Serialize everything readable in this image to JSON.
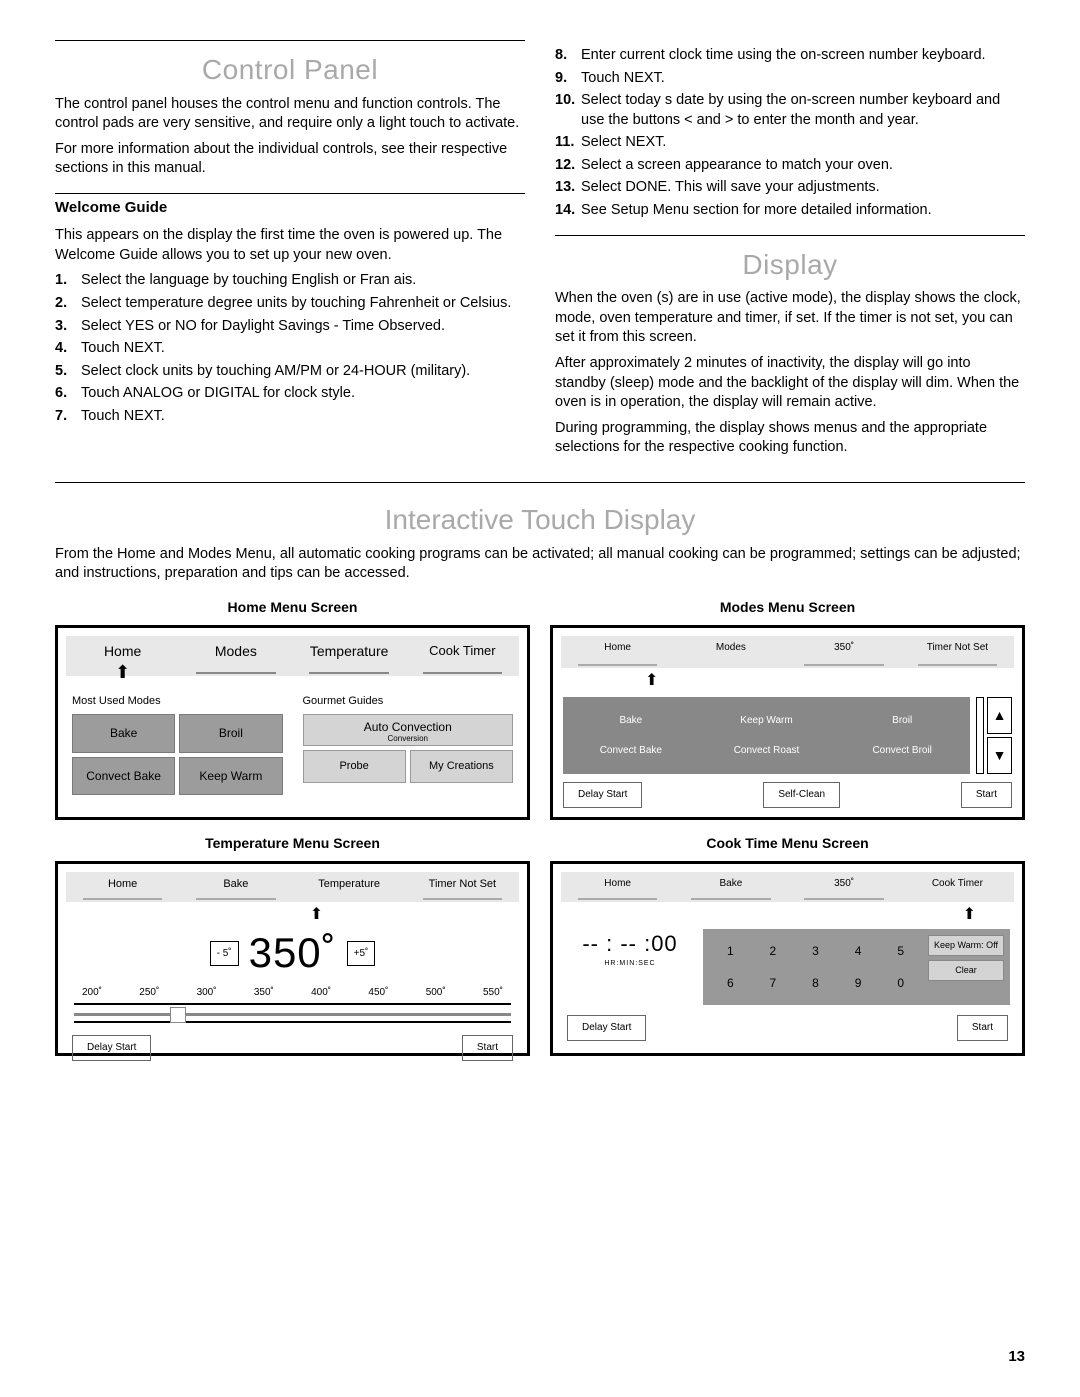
{
  "page_number": "13",
  "control_panel": {
    "title": "Control Panel",
    "p1": "The control panel houses the control menu and function controls. The control pads are very sensitive, and require only a light touch to activate.",
    "p2": "For more information about the individual controls, see their respective sections in this manual.",
    "welcome_guide_head": "Welcome Guide",
    "wg_p1": "This appears on the display the first time the oven is powered up. The Welcome Guide allows you to set up your new oven.",
    "left_steps": [
      "Select the language by touching English or Fran ais.",
      "Select temperature degree units by touching Fahrenheit or Celsius.",
      "Select YES or NO for Daylight Savings - Time Observed.",
      "Touch NEXT.",
      "Select clock units by touching AM/PM or 24-HOUR (military).",
      "Touch ANALOG or DIGITAL for clock style.",
      "Touch NEXT."
    ],
    "right_steps": [
      "Enter current clock time using the on-screen number keyboard.",
      "Touch NEXT.",
      "Select today s date by using the on-screen number keyboard and use the buttons  <  and  >  to enter the month and year.",
      "Select NEXT.",
      "Select a screen appearance to match your oven.",
      "Select DONE. This will save your adjustments.",
      "See  Setup Menu  section for more detailed information."
    ]
  },
  "display": {
    "title": "Display",
    "p1": "When the oven (s) are in use (active mode), the display shows the clock, mode, oven temperature and timer, if set. If the timer is not set, you can set it from this screen.",
    "p2": "After approximately 2 minutes of inactivity, the display will go into standby (sleep) mode and the backlight of the display will dim. When the oven is in operation, the display will remain active.",
    "p3": "During programming, the display shows menus and the appropriate selections for the respective cooking function."
  },
  "interactive": {
    "title": "Interactive Touch Display",
    "intro": "From the Home and Modes Menu, all automatic cooking programs can   be activated; all manual cooking can be programmed; settings can be adjusted; and instructions, preparation and tips can be accessed."
  },
  "home_menu": {
    "title": "Home Menu Screen",
    "tabs": [
      "Home",
      "Modes",
      "Temperature",
      "Cook Timer"
    ],
    "most_used": "Most Used Modes",
    "gourmet": "Gourmet Guides",
    "left_btns": [
      "Bake",
      "Broil",
      "Convect Bake",
      "Keep Warm"
    ],
    "auto_conv": "Auto Convection",
    "auto_conv_sub": "Conversion",
    "right_btns": [
      "Probe",
      "My Creations"
    ]
  },
  "modes_menu": {
    "title": "Modes Menu Screen",
    "tabs": [
      "Home",
      "Modes",
      "350˚",
      "Timer Not Set"
    ],
    "row1": [
      "Bake",
      "Keep Warm",
      "Broil"
    ],
    "row2": [
      "Convect Bake",
      "Convect Roast",
      "Convect Broil"
    ],
    "bot": [
      "Delay Start",
      "Self-Clean",
      "Start"
    ]
  },
  "temp_menu": {
    "title": "Temperature Menu Screen",
    "tabs": [
      "Home",
      "Bake",
      "Temperature",
      "Timer Not Set"
    ],
    "minus": "- 5˚",
    "big": "350˚",
    "plus": "+5˚",
    "scale": [
      "200˚",
      "250˚",
      "300˚",
      "350˚",
      "400˚",
      "450˚",
      "500˚",
      "550˚"
    ],
    "bot": [
      "Delay Start",
      "Start"
    ]
  },
  "cook_menu": {
    "title": "Cook Time Menu Screen",
    "tabs": [
      "Home",
      "Bake",
      "350˚",
      "Cook Timer"
    ],
    "time_big": "-- : -- :00",
    "time_sub": "HR:MIN:SEC",
    "nums": [
      "1",
      "2",
      "3",
      "4",
      "5",
      "6",
      "7",
      "8",
      "9",
      "0"
    ],
    "kw_off": "Keep Warm: Off",
    "clear": "Clear",
    "bot": [
      "Delay Start",
      "Start"
    ]
  }
}
